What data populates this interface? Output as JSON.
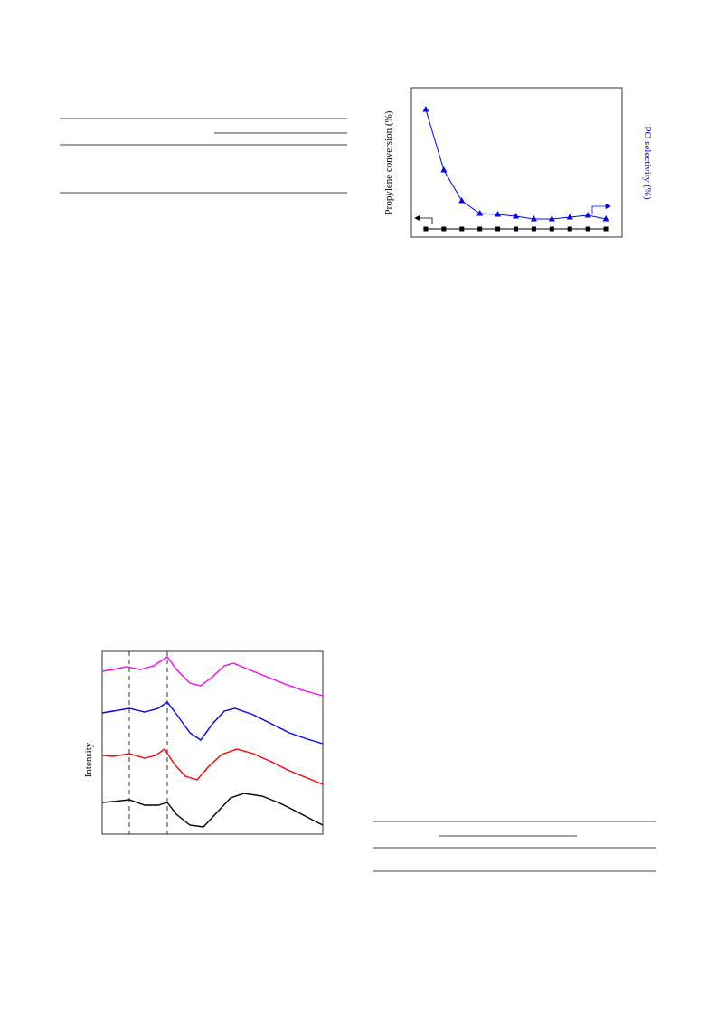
{
  "chart_data": [
    {
      "type": "line",
      "y_label": "Propylene conversion (%)",
      "y2_label": "PO selectivity (%)",
      "x": [
        1,
        2,
        3,
        4,
        5,
        6,
        7,
        8,
        9,
        10,
        11
      ],
      "xlim": [
        0.2,
        11.9
      ],
      "ylim": [
        0,
        165
      ],
      "series": [
        {
          "color": "#000000",
          "marker": "square",
          "values": [
            9,
            9,
            9,
            9,
            9,
            9,
            9,
            9,
            9,
            9,
            9
          ]
        },
        {
          "color": "#0000ff",
          "marker": "triangle",
          "axis": "y2",
          "values": [
            141,
            74,
            40,
            26,
            25,
            23,
            20,
            20,
            22,
            24,
            20
          ]
        }
      ]
    },
    {
      "type": "line",
      "y_label": "Intensity",
      "xlim": [
        0,
        244
      ],
      "ylim": [
        0,
        202
      ],
      "vlines": [
        30,
        72
      ],
      "series": [
        {
          "color": "#ff00ff",
          "x": [
            0,
            12,
            27,
            42,
            57,
            72,
            82,
            97,
            109,
            122,
            135,
            145,
            162,
            182,
            202,
            222,
            244
          ],
          "values": [
            180,
            182,
            185,
            182,
            186,
            196,
            182,
            167,
            164,
            174,
            186,
            189,
            182,
            174,
            166,
            159,
            153
          ]
        },
        {
          "color": "#0000ff",
          "x": [
            0,
            12,
            30,
            47,
            62,
            72,
            84,
            97,
            109,
            122,
            135,
            147,
            167,
            187,
            207,
            227,
            244
          ],
          "values": [
            134,
            136,
            139,
            135,
            139,
            146,
            130,
            112,
            104,
            122,
            136,
            139,
            132,
            122,
            112,
            105,
            100
          ]
        },
        {
          "color": "#ff0000",
          "x": [
            0,
            12,
            30,
            47,
            59,
            69,
            80,
            92,
            105,
            117,
            132,
            149,
            167,
            187,
            207,
            227,
            244
          ],
          "values": [
            87,
            86,
            89,
            84,
            87,
            94,
            77,
            64,
            60,
            74,
            88,
            94,
            89,
            80,
            70,
            62,
            55
          ]
        },
        {
          "color": "#000000",
          "x": [
            0,
            12,
            30,
            47,
            62,
            72,
            82,
            97,
            112,
            127,
            142,
            157,
            177,
            197,
            217,
            232,
            244
          ],
          "values": [
            35,
            36,
            38,
            32,
            32,
            35,
            22,
            10,
            8,
            24,
            40,
            45,
            42,
            34,
            24,
            16,
            10
          ]
        }
      ]
    }
  ]
}
